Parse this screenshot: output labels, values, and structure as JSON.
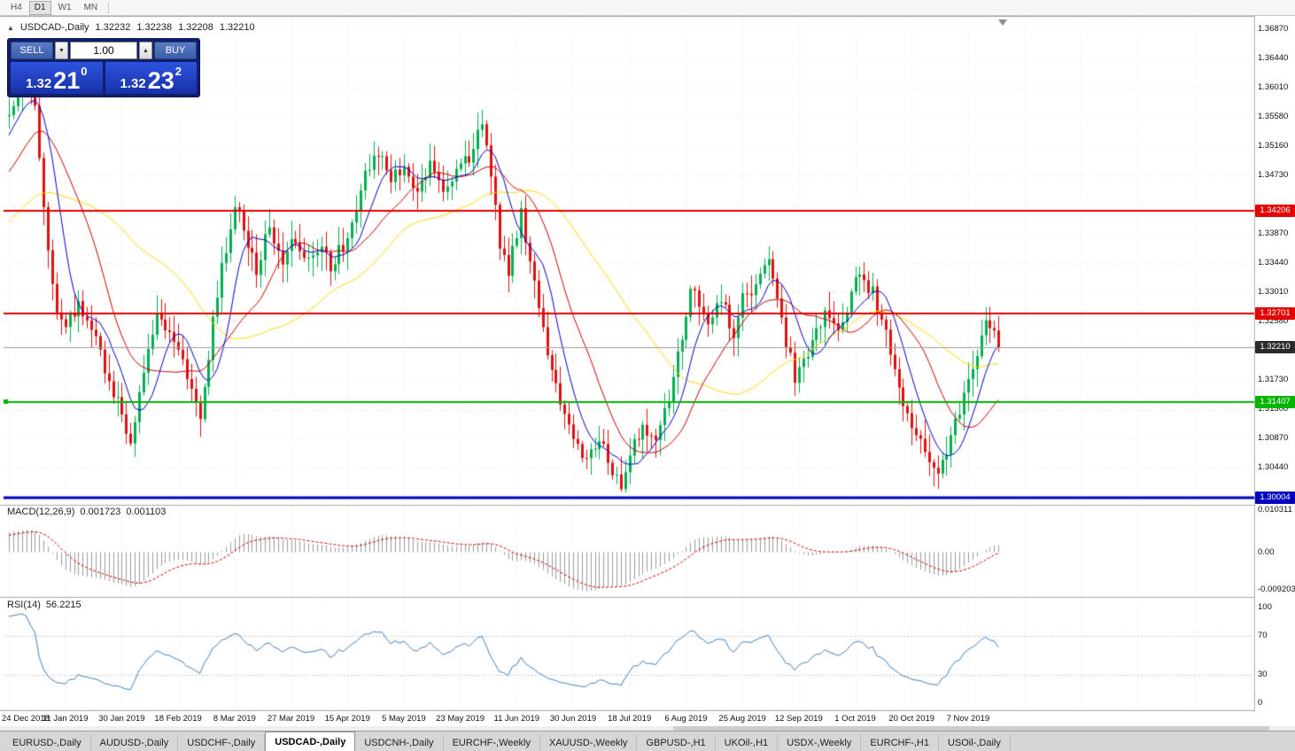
{
  "toolbar": {
    "timeframes": [
      "H4",
      "D1",
      "W1",
      "MN"
    ],
    "active_timeframe": "D1"
  },
  "chart_header": {
    "collapse_icon": "▲",
    "symbol": "USDCAD-,Daily",
    "open": "1.32232",
    "high": "1.32238",
    "low": "1.32208",
    "close": "1.32210"
  },
  "trade_panel": {
    "sell_label": "SELL",
    "buy_label": "BUY",
    "volume_value": "1.00",
    "volume_decrease_icon": "▼",
    "volume_increase_icon": "▲",
    "sell_price_whole": "1.32",
    "sell_price_pips": "21",
    "sell_price_point": "0",
    "buy_price_whole": "1.32",
    "buy_price_pips": "23",
    "buy_price_point": "2"
  },
  "price_axis": {
    "labels": [
      "1.36870",
      "1.36440",
      "1.36010",
      "1.35580",
      "1.35160",
      "1.34730",
      "1.33870",
      "1.33440",
      "1.33010",
      "1.32580",
      "1.31730",
      "1.31300",
      "1.30870",
      "1.30440"
    ],
    "current_price_label": "1.32210",
    "current_badge_color": "#2b2b2b"
  },
  "horizontal_lines": [
    {
      "name": "resistance-upper",
      "price": 1.34206,
      "label": "1.34206",
      "color": "#e60000",
      "thickness": 2
    },
    {
      "name": "resistance-lower",
      "price": 1.32701,
      "label": "1.32701",
      "color": "#e60000",
      "thickness": 2
    },
    {
      "name": "support",
      "price": 1.31407,
      "label": "1.31407",
      "color": "#00b400",
      "thickness": 2
    },
    {
      "name": "major-support",
      "price": 1.30004,
      "label": "1.30004",
      "color": "#0000c0",
      "thickness": 3
    }
  ],
  "macd_panel": {
    "title": "MACD(12,26,9)",
    "value_main": "0.001723",
    "value_signal": "0.001103",
    "axis_top": "0.010311",
    "axis_mid": "0.00",
    "axis_bottom": "-0.009203"
  },
  "rsi_panel": {
    "title": "RSI(14)",
    "value": "56.2215",
    "axis": [
      "100",
      "70",
      "30",
      "0"
    ],
    "levels": [
      70,
      30
    ]
  },
  "time_axis": {
    "dates": [
      "24 Dec 2018",
      "11 Jan 2019",
      "30 Jan 2019",
      "18 Feb 2019",
      "8 Mar 2019",
      "27 Mar 2019",
      "15 Apr 2019",
      "5 May 2019",
      "23 May 2019",
      "11 Jun 2019",
      "30 Jun 2019",
      "18 Jul 2019",
      "6 Aug 2019",
      "25 Aug 2019",
      "12 Sep 2019",
      "1 Oct 2019",
      "20 Oct 2019",
      "7 Nov 2019"
    ],
    "bars_per_label": 13
  },
  "tabs": [
    {
      "label": "EURUSD-,Daily",
      "active": false
    },
    {
      "label": "AUDUSD-,Daily",
      "active": false
    },
    {
      "label": "USDCHF-,Daily",
      "active": false
    },
    {
      "label": "USDCAD-,Daily",
      "active": true
    },
    {
      "label": "USDCNH-,Daily",
      "active": false
    },
    {
      "label": "EURCHF-,Weekly",
      "active": false
    },
    {
      "label": "XAUUSD-,Weekly",
      "active": false
    },
    {
      "label": "GBPUSD-,H1",
      "active": false
    },
    {
      "label": "UKOil-,H1",
      "active": false
    },
    {
      "label": "USDX-,Weekly",
      "active": false
    },
    {
      "label": "EURCHF-,H1",
      "active": false
    },
    {
      "label": "USOil-,Daily",
      "active": false
    }
  ],
  "chart_data": {
    "type": "candlestick",
    "symbol": "USDCAD",
    "timeframe": "Daily",
    "current_price": 1.3221,
    "visible_bars": 229,
    "warmup_bars": 60,
    "price_range_top": 1.36935,
    "price_range_bottom": 1.29985,
    "up_color": "#00b050",
    "down_color": "#e01010",
    "grid_color": "#ebebeb",
    "hidden_grid_prices": [
      1.343,
      1.3215
    ],
    "current_price_line_color": "#9b9b9b",
    "ma_lines": [
      {
        "period": 8,
        "color": "#0000cc"
      },
      {
        "period": 18,
        "color": "#cc0000"
      },
      {
        "period": 45,
        "color": "#ffd900"
      }
    ],
    "macd": {
      "fast": 12,
      "slow": 26,
      "signal": 9,
      "hist_color": "#9a9a9a",
      "signal_color": "#d00000",
      "axis_max": 0.010311,
      "axis_min": -0.009203
    },
    "rsi": {
      "period": 14,
      "color": "#3f7fc1",
      "level_color": "#c9c9c9"
    },
    "waypoints": [
      [
        -60,
        1.324
      ],
      [
        -45,
        1.33
      ],
      [
        -30,
        1.336
      ],
      [
        -18,
        1.34
      ],
      [
        -10,
        1.344
      ],
      [
        -5,
        1.352
      ],
      [
        -2,
        1.355
      ],
      [
        0,
        1.356
      ],
      [
        2,
        1.359
      ],
      [
        4,
        1.3605
      ],
      [
        6,
        1.358
      ],
      [
        8,
        1.342
      ],
      [
        11,
        1.327
      ],
      [
        13,
        1.3255
      ],
      [
        16,
        1.3285
      ],
      [
        20,
        1.323
      ],
      [
        24,
        1.315
      ],
      [
        26,
        1.313
      ],
      [
        28,
        1.3078
      ],
      [
        31,
        1.318
      ],
      [
        34,
        1.327
      ],
      [
        37,
        1.324
      ],
      [
        39,
        1.3225
      ],
      [
        42,
        1.316
      ],
      [
        44,
        1.312
      ],
      [
        48,
        1.33
      ],
      [
        52,
        1.3435
      ],
      [
        54,
        1.339
      ],
      [
        57,
        1.333
      ],
      [
        60,
        1.34
      ],
      [
        63,
        1.335
      ],
      [
        65,
        1.338
      ],
      [
        68,
        1.3345
      ],
      [
        71,
        1.337
      ],
      [
        74,
        1.334
      ],
      [
        77,
        1.337
      ],
      [
        80,
        1.343
      ],
      [
        82,
        1.348
      ],
      [
        85,
        1.3505
      ],
      [
        88,
        1.347
      ],
      [
        91,
        1.349
      ],
      [
        94,
        1.344
      ],
      [
        97,
        1.349
      ],
      [
        100,
        1.3455
      ],
      [
        103,
        1.348
      ],
      [
        106,
        1.35
      ],
      [
        109,
        1.3545
      ],
      [
        111,
        1.348
      ],
      [
        113,
        1.336
      ],
      [
        115,
        1.333
      ],
      [
        118,
        1.342
      ],
      [
        121,
        1.331
      ],
      [
        124,
        1.321
      ],
      [
        127,
        1.314
      ],
      [
        130,
        1.309
      ],
      [
        133,
        1.305
      ],
      [
        136,
        1.3085
      ],
      [
        139,
        1.304
      ],
      [
        141,
        1.3022
      ],
      [
        143,
        1.306
      ],
      [
        146,
        1.311
      ],
      [
        149,
        1.308
      ],
      [
        152,
        1.315
      ],
      [
        155,
        1.323
      ],
      [
        157,
        1.331
      ],
      [
        161,
        1.325
      ],
      [
        164,
        1.329
      ],
      [
        167,
        1.324
      ],
      [
        169,
        1.329
      ],
      [
        172,
        1.331
      ],
      [
        175,
        1.3355
      ],
      [
        178,
        1.326
      ],
      [
        181,
        1.3175
      ],
      [
        183,
        1.3195
      ],
      [
        185,
        1.324
      ],
      [
        188,
        1.327
      ],
      [
        191,
        1.3235
      ],
      [
        193,
        1.328
      ],
      [
        196,
        1.333
      ],
      [
        199,
        1.33
      ],
      [
        202,
        1.324
      ],
      [
        205,
        1.316
      ],
      [
        208,
        1.311
      ],
      [
        211,
        1.307
      ],
      [
        214,
        1.3045
      ],
      [
        217,
        1.3085
      ],
      [
        219,
        1.313
      ],
      [
        221,
        1.317
      ],
      [
        223,
        1.3215
      ],
      [
        225,
        1.327
      ],
      [
        227,
        1.3248
      ],
      [
        228,
        1.3221
      ]
    ]
  }
}
